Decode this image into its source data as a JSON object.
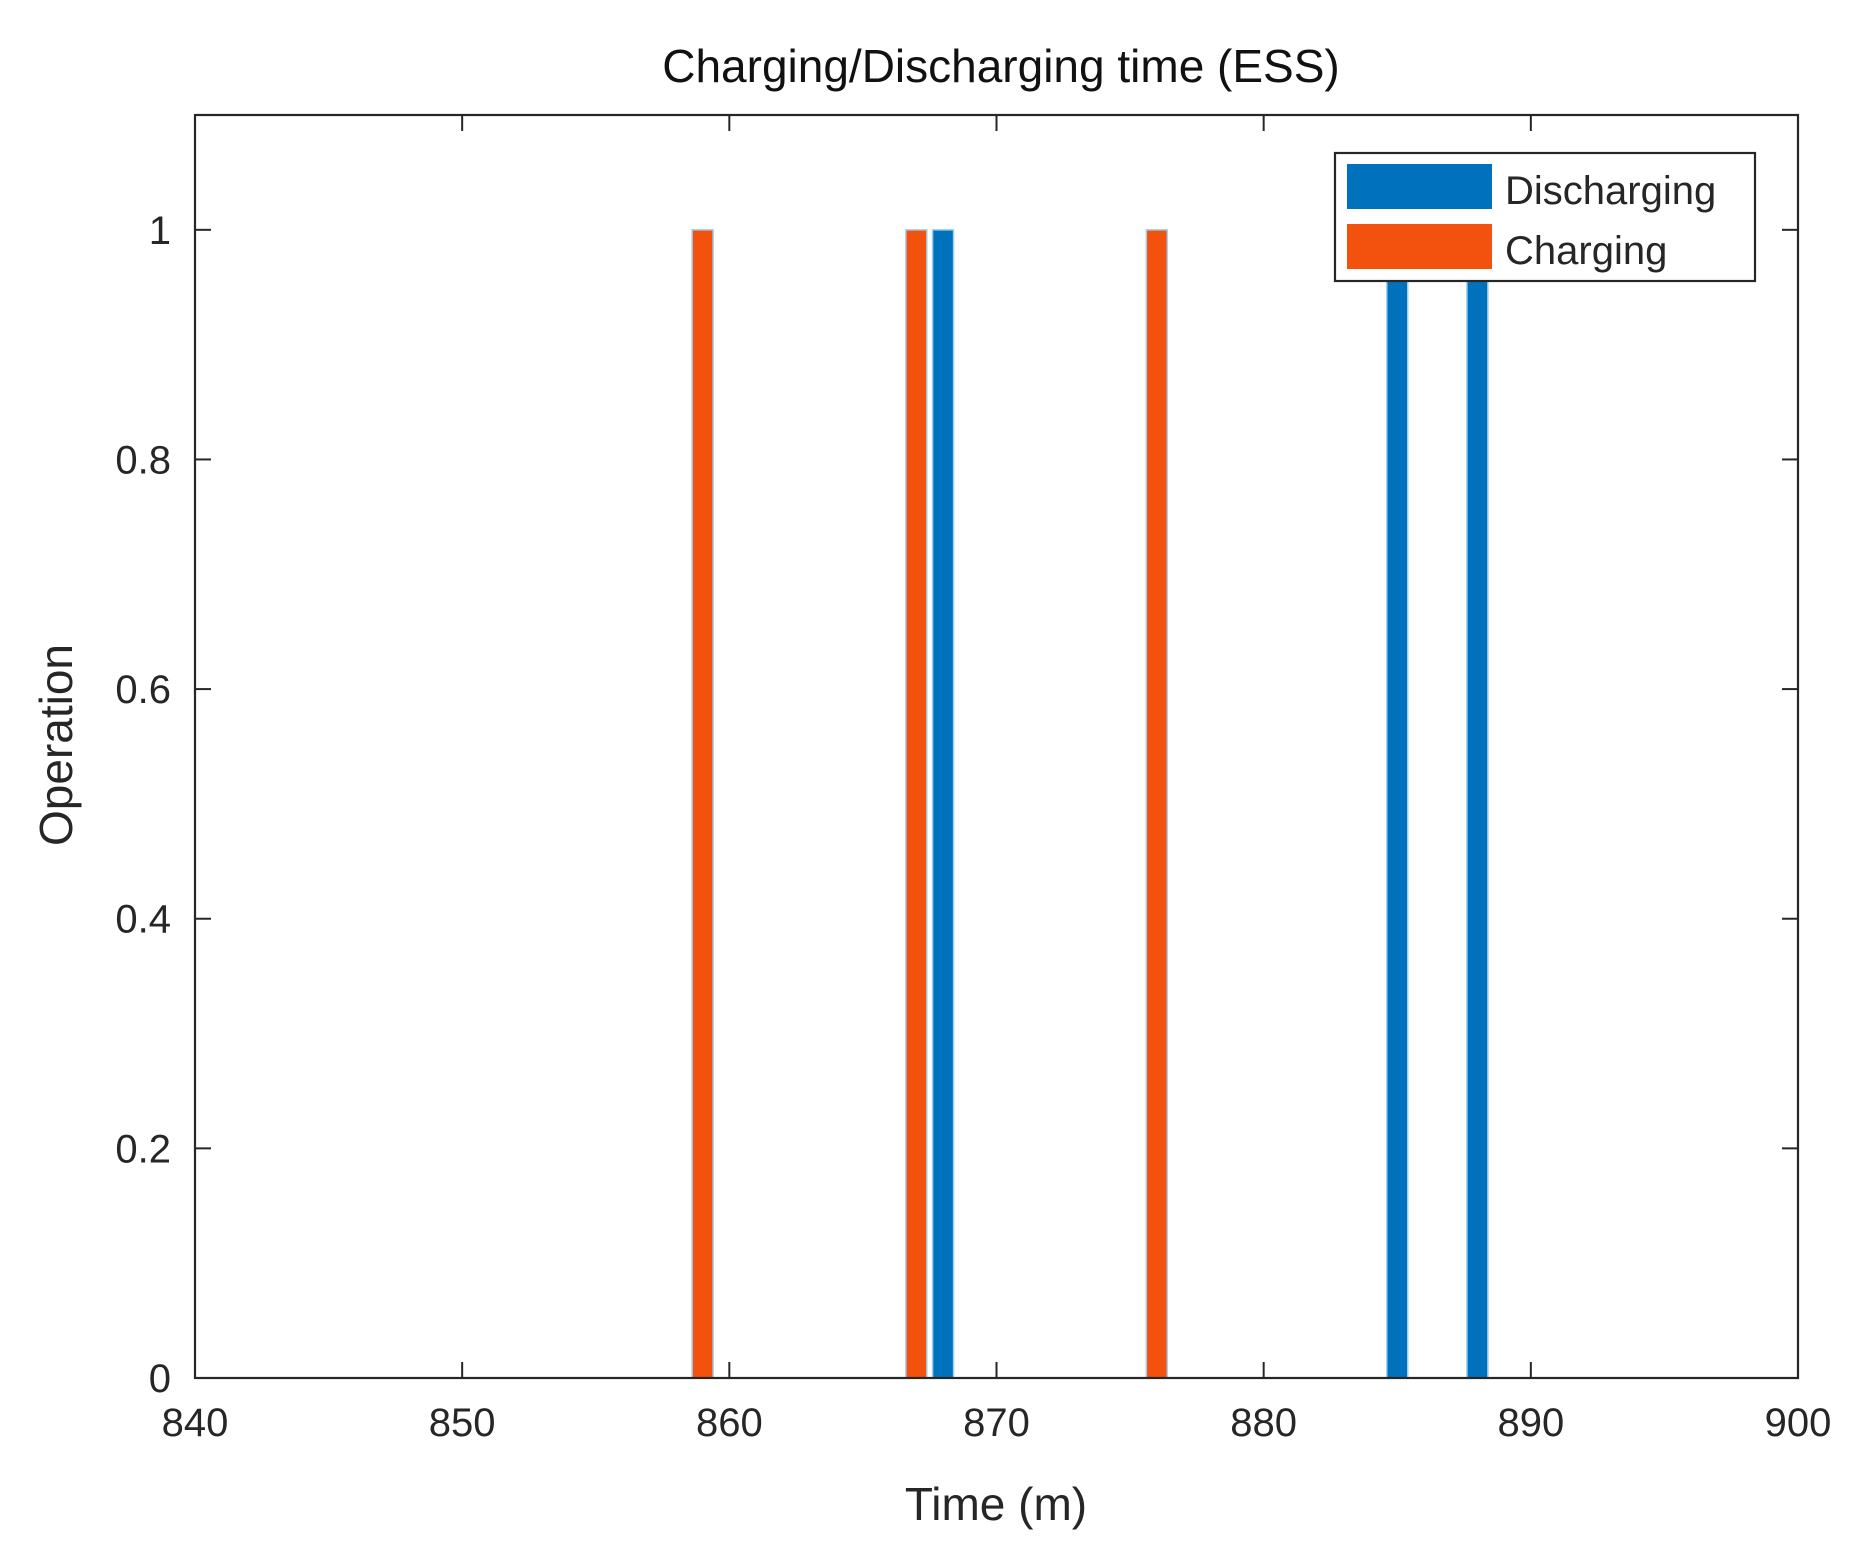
{
  "chart_data": {
    "type": "bar",
    "title": "Charging/Discharging time (ESS)",
    "xlabel": "Time (m)",
    "ylabel": "Operation",
    "xlim": [
      840,
      900
    ],
    "ylim": [
      0,
      1.1
    ],
    "xticks": [
      840,
      850,
      860,
      870,
      880,
      890,
      900
    ],
    "yticks": [
      0,
      0.2,
      0.4,
      0.6,
      0.8,
      1
    ],
    "ytick_labels": [
      "0",
      "0.2",
      "0.4",
      "0.6",
      "0.8",
      "1"
    ],
    "grid": false,
    "legend_position": "top-right",
    "series": [
      {
        "name": "Discharging",
        "color": "#0072BD",
        "bars": [
          {
            "x": 868,
            "value": 1
          },
          {
            "x": 885,
            "value": 1
          },
          {
            "x": 888,
            "value": 1
          }
        ]
      },
      {
        "name": "Charging",
        "color": "#F2520E",
        "bars": [
          {
            "x": 859,
            "value": 1
          },
          {
            "x": 867,
            "value": 1
          },
          {
            "x": 876,
            "value": 1
          }
        ]
      }
    ]
  }
}
